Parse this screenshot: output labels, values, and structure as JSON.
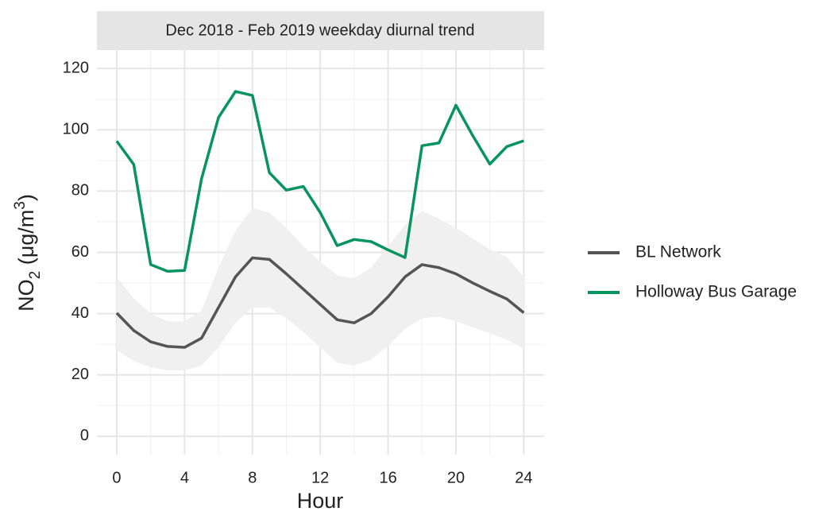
{
  "chart_data": {
    "type": "line",
    "strip_title": "Dec 2018 - Feb 2019 weekday diurnal trend",
    "x_label": "Hour",
    "y_label": {
      "base": "NO",
      "sub": "2",
      "unit": " (μg/m",
      "sup": "3",
      "close": ")"
    },
    "x": [
      0,
      1,
      2,
      3,
      4,
      5,
      6,
      7,
      8,
      9,
      10,
      11,
      12,
      13,
      14,
      15,
      16,
      17,
      18,
      19,
      20,
      21,
      22,
      23,
      24
    ],
    "xlim": [
      -1.17,
      25.2
    ],
    "xticks": [
      0,
      4,
      8,
      12,
      16,
      20,
      24
    ],
    "ylim": [
      -6,
      126
    ],
    "yticks": [
      0,
      20,
      40,
      60,
      80,
      100,
      120
    ],
    "grid": true,
    "legend": "right",
    "series": [
      {
        "name": "BL Network",
        "color": "#555555",
        "values": [
          40.2,
          34.5,
          30.8,
          29.3,
          29,
          32,
          42,
          52,
          58.2,
          57.7,
          53,
          48,
          43,
          38,
          37,
          40,
          45.5,
          52,
          56,
          55,
          53,
          50,
          47.3,
          44.8,
          40.3
        ],
        "band": {
          "color": "#f0f0f0",
          "lower": [
            28,
            24.5,
            22.5,
            21.5,
            21.5,
            23,
            29,
            37,
            42,
            42,
            38.5,
            34,
            29,
            24,
            23,
            25,
            29.5,
            35,
            38.5,
            39,
            37.5,
            35.5,
            33.5,
            31.5,
            28.5
          ],
          "upper": [
            52,
            45,
            40,
            37.5,
            37.5,
            41,
            55,
            67,
            74.5,
            73,
            68,
            62,
            57,
            52.5,
            51.5,
            55,
            62,
            69,
            73.5,
            71,
            68,
            64.5,
            61,
            58.5,
            52
          ]
        }
      },
      {
        "name": "Holloway Bus Garage",
        "color": "#089460",
        "values": [
          96.3,
          88.7,
          56,
          53.8,
          54.1,
          84,
          104,
          112.5,
          111.2,
          86,
          80.3,
          81.5,
          73,
          62.2,
          64.2,
          63.5,
          60.8,
          58.3,
          94.8,
          95.7,
          108,
          98,
          88.8,
          94.5,
          96.4
        ]
      }
    ]
  }
}
